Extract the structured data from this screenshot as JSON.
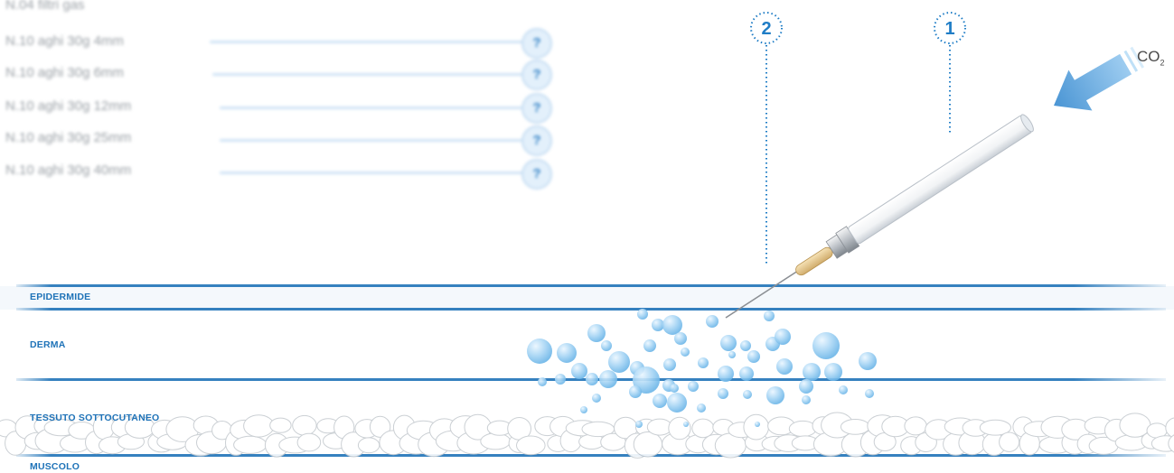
{
  "needle_list": [
    {
      "label": "N.04 filtri gas",
      "badge": ""
    },
    {
      "label": "N.10 aghi 30g 4mm",
      "badge": "?"
    },
    {
      "label": "N.10 aghi 30g 6mm",
      "badge": "?"
    },
    {
      "label": "N.10 aghi 30g 12mm",
      "badge": "?"
    },
    {
      "label": "N.10 aghi 30g 25mm",
      "badge": "?"
    },
    {
      "label": "N.10 aghi 30g 40mm",
      "badge": "?"
    }
  ],
  "markers": {
    "marker_2": "2",
    "marker_1": "1"
  },
  "gas": {
    "symbol": "CO",
    "subscript": "2"
  },
  "layers": {
    "epidermide": "EPIDERMIDE",
    "derma": "DERMA",
    "tessuto": "TESSUTO SOTTOCUTANEO",
    "muscolo": "MUSCOLO"
  },
  "colors": {
    "accent": "#1f73b8",
    "bubble": "#8fc8ef",
    "arrow": "#6cace0"
  },
  "icons": {
    "gas_arrow": "arrow-icon",
    "syringe": "needle-icon"
  }
}
